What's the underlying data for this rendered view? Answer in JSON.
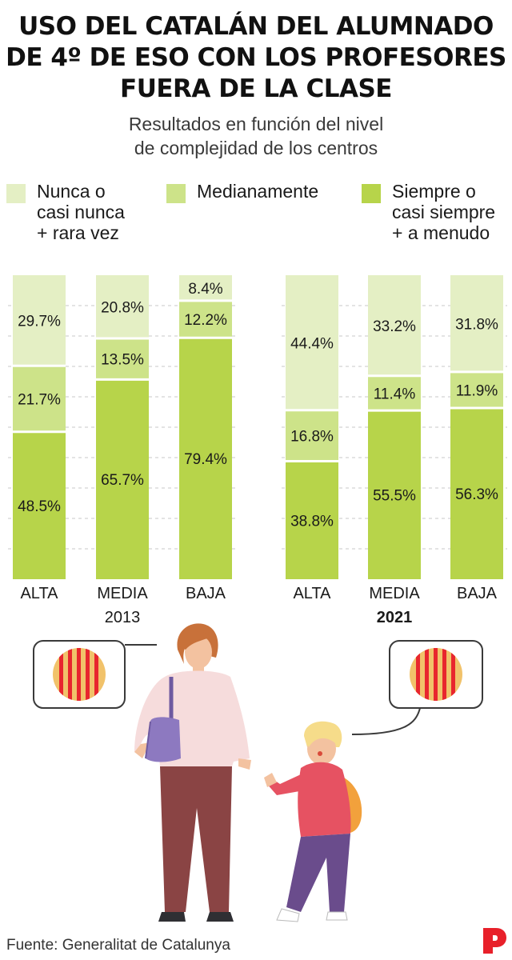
{
  "title_lines": [
    "USO DEL CATALÁN DEL ALUMNADO",
    "DE 4º DE ESO CON LOS PROFESORES",
    "FUERA DE LA CLASE"
  ],
  "subtitle_lines": [
    "Resultados en función del nivel",
    "de complejidad de los centros"
  ],
  "legend": [
    {
      "lines": [
        "Nunca o",
        "casi nunca",
        "+ rara vez"
      ],
      "color": "#e4efc4"
    },
    {
      "lines": [
        "Medianamente"
      ],
      "color": "#cde389"
    },
    {
      "lines": [
        "Siempre o",
        "casi siempre",
        "+ a menudo"
      ],
      "color": "#b7d44a"
    }
  ],
  "source": "Fuente: Generalitat de Catalunya",
  "chart_data": [
    {
      "type": "bar",
      "stacked": true,
      "percent": true,
      "group_label": "2013",
      "group_label_bold": false,
      "categories": [
        "ALTA",
        "MEDIA",
        "BAJA"
      ],
      "series": [
        {
          "name": "Siempre o casi siempre + a menudo",
          "values": [
            48.5,
            65.7,
            79.4
          ],
          "labels": [
            "48.5%",
            "65.7%",
            "79.4%"
          ]
        },
        {
          "name": "Medianamente",
          "values": [
            21.7,
            13.5,
            12.2
          ],
          "labels": [
            "21.7%",
            "13.5%",
            "12.2%"
          ]
        },
        {
          "name": "Nunca o casi nunca + rara vez",
          "values": [
            29.7,
            20.8,
            8.4
          ],
          "labels": [
            "29.7%",
            "20.8%",
            "8.4%"
          ]
        }
      ],
      "ylim": [
        0,
        100
      ],
      "grid": true
    },
    {
      "type": "bar",
      "stacked": true,
      "percent": true,
      "group_label": "2021",
      "group_label_bold": true,
      "categories": [
        "ALTA",
        "MEDIA",
        "BAJA"
      ],
      "series": [
        {
          "name": "Siempre o casi siempre + a menudo",
          "values": [
            38.8,
            55.5,
            56.3
          ],
          "labels": [
            "38.8%",
            "55.5%",
            "56.3%"
          ]
        },
        {
          "name": "Medianamente",
          "values": [
            16.8,
            11.4,
            11.9
          ],
          "labels": [
            "16.8%",
            "11.4%",
            "11.9%"
          ]
        },
        {
          "name": "Nunca o casi nunca + rara vez",
          "values": [
            44.4,
            33.2,
            31.8
          ],
          "labels": [
            "44.4%",
            "33.2%",
            "31.8%"
          ]
        }
      ],
      "ylim": [
        0,
        100
      ],
      "grid": true
    }
  ],
  "colors": {
    "never": "#e4efc4",
    "medium": "#cde389",
    "always": "#b7d44a",
    "grid": "#c8c8c8",
    "logo": "#e8202a"
  },
  "icons": [
    "catalan-flag-icon",
    "speech-bubble-icon",
    "woman-illustration",
    "boy-illustration",
    "publisher-logo-icon"
  ]
}
